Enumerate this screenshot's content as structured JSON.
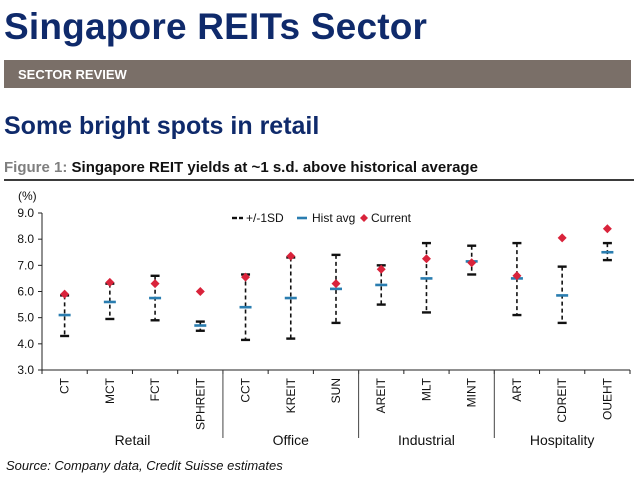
{
  "page": {
    "title": "Singapore REITs Sector",
    "band_label": "SECTOR REVIEW",
    "subtitle": "Some bright spots in retail",
    "figure_label": "Figure 1:",
    "figure_title": "Singapore REIT yields at ~1 s.d. above historical average",
    "source": "Source: Company data, Credit Suisse estimates"
  },
  "colors": {
    "title": "#0f2a6b",
    "band": "#7a6f68",
    "hist_avg": "#2a7db0",
    "current": "#d9233b",
    "range": "#111111"
  },
  "chart_data": {
    "type": "scatter",
    "title": "Singapore REIT yields at ~1 s.d. above historical average",
    "ylabel": "(%)",
    "ylim": [
      3.0,
      9.0
    ],
    "yticks": [
      "3.0",
      "4.0",
      "5.0",
      "6.0",
      "7.0",
      "8.0",
      "9.0"
    ],
    "grid": false,
    "legend": [
      "+/-1SD",
      "Hist avg",
      "Current"
    ],
    "legend_position": "top-center",
    "groups": [
      {
        "name": "Retail",
        "categories": [
          "CT",
          "MCT",
          "FCT",
          "SPHREIT"
        ]
      },
      {
        "name": "Office",
        "categories": [
          "CCT",
          "KREIT",
          "SUN"
        ]
      },
      {
        "name": "Industrial",
        "categories": [
          "AREIT",
          "MLT",
          "MINT"
        ]
      },
      {
        "name": "Hospitality",
        "categories": [
          "ART",
          "CDREIT",
          "OUEHT"
        ]
      }
    ],
    "categories": [
      "CT",
      "MCT",
      "FCT",
      "SPHREIT",
      "CCT",
      "KREIT",
      "SUN",
      "AREIT",
      "MLT",
      "MINT",
      "ART",
      "CDREIT",
      "OUEHT"
    ],
    "series": [
      {
        "name": "+/-1SD low",
        "values": [
          4.3,
          4.95,
          4.9,
          4.5,
          4.15,
          4.2,
          4.8,
          5.5,
          5.2,
          6.65,
          5.1,
          4.8,
          7.2
        ]
      },
      {
        "name": "+/-1SD high",
        "values": [
          5.85,
          6.3,
          6.6,
          4.85,
          6.65,
          7.3,
          7.4,
          7.0,
          7.85,
          7.75,
          7.85,
          6.95,
          7.85
        ]
      },
      {
        "name": "Hist avg",
        "values": [
          5.1,
          5.6,
          5.75,
          4.7,
          5.4,
          5.75,
          6.1,
          6.25,
          6.5,
          7.15,
          6.5,
          5.85,
          7.5
        ]
      },
      {
        "name": "Current",
        "values": [
          5.9,
          6.35,
          6.3,
          6.0,
          6.55,
          7.35,
          6.3,
          6.85,
          7.25,
          7.1,
          6.6,
          8.05,
          8.4
        ]
      }
    ]
  }
}
